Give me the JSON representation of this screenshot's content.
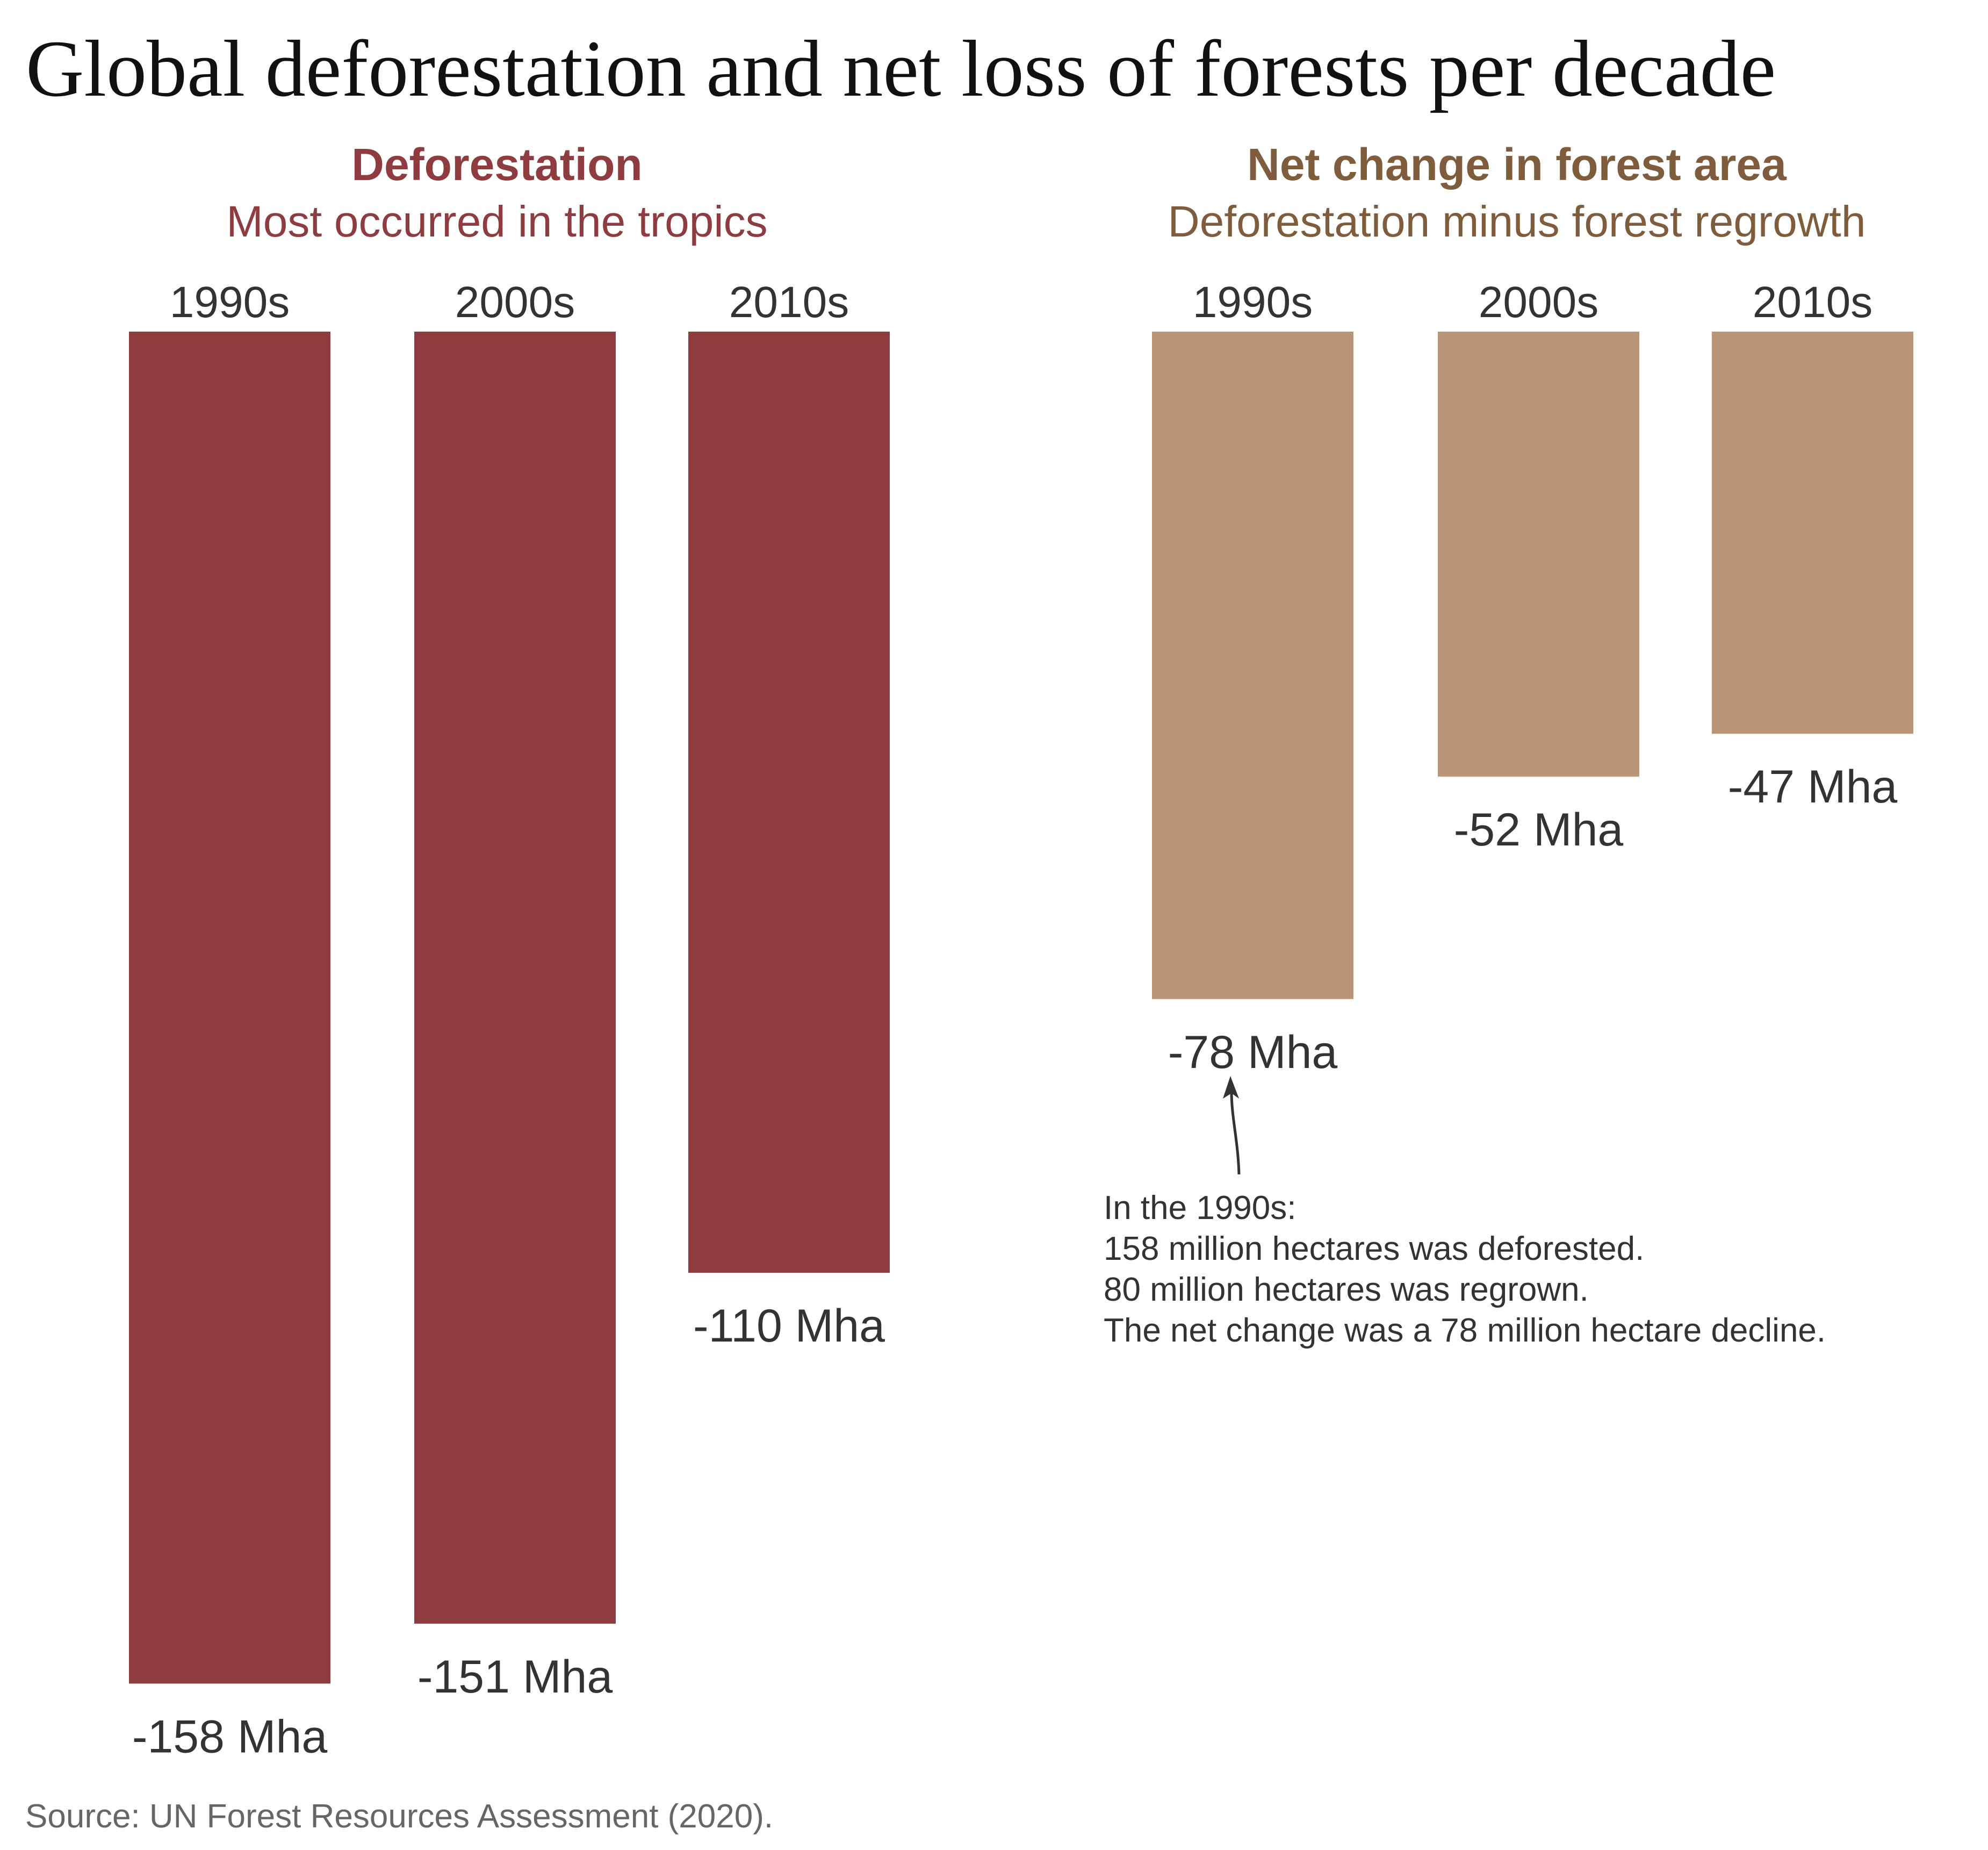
{
  "title": "Global deforestation and net loss of forests per decade",
  "source": "Source: UN Forest Resources Assessment (2020).",
  "chart_data": [
    {
      "type": "bar",
      "title": "Deforestation",
      "subtitle": "Most occurred in the tropics",
      "color": "#8e3c40",
      "title_color": "#8e3c40",
      "categories": [
        "1990s",
        "2000s",
        "2010s"
      ],
      "values": [
        -158,
        -151,
        -110
      ],
      "labels": [
        "-158 Mha",
        "-151 Mha",
        "-110 Mha"
      ],
      "unit": "Mha",
      "grid": false
    },
    {
      "type": "bar",
      "title": "Net change in forest area",
      "subtitle": "Deforestation minus forest regrowth",
      "color": "#b89575",
      "title_color": "#7f5c3c",
      "categories": [
        "1990s",
        "2000s",
        "2010s"
      ],
      "values": [
        -78,
        -52,
        -47
      ],
      "labels": [
        "-78 Mha",
        "-52 Mha",
        "-47 Mha"
      ],
      "unit": "Mha",
      "grid": false,
      "annotation": {
        "target": "1990s",
        "lines": [
          "In the 1990s:",
          "158 million hectares was deforested.",
          "80 million hectares was regrown.",
          "The net change was a 78 million hectare decline."
        ]
      }
    }
  ]
}
